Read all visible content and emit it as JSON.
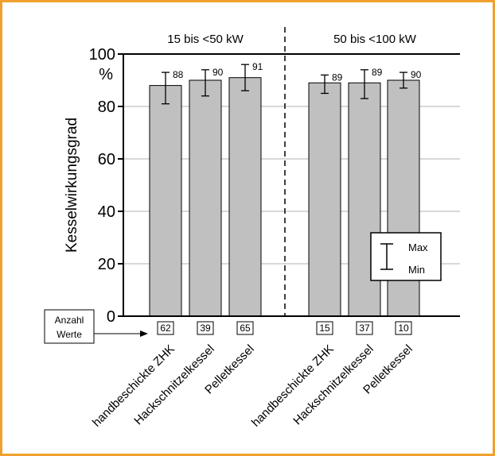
{
  "colors": {
    "frame_border": "#f0a030",
    "bar_fill": "#c0c0c0",
    "bar_stroke": "#000000",
    "grid": "#b0b0b0",
    "axis": "#000000"
  },
  "chart_data": {
    "type": "bar",
    "ylabel": "Kesselwirkungsgrad",
    "yunit": "%",
    "ylim": [
      0,
      100
    ],
    "yticks": [
      0,
      20,
      40,
      60,
      80,
      100
    ],
    "grid": true,
    "error_bars": true,
    "groups": [
      {
        "label": "15 bis <50 kW"
      },
      {
        "label": "50 bis <100 kW"
      }
    ],
    "categories": [
      "handbeschickte ZHK",
      "Hackschnitzelkessel",
      "Pelletkessel",
      "handbeschickte ZHK",
      "Hackschnitzelkessel",
      "Pelletkessel"
    ],
    "values": [
      88,
      90,
      91,
      89,
      89,
      90
    ],
    "min": [
      81,
      84,
      86,
      85,
      83,
      87
    ],
    "max": [
      93,
      94,
      96,
      92,
      94,
      93
    ],
    "counts": [
      "62",
      "39",
      "65",
      "15",
      "37",
      "10"
    ],
    "count_note": [
      "Anzahl",
      "Werte"
    ],
    "legend": {
      "max_label": "Max",
      "min_label": "Min",
      "position": "right"
    }
  }
}
